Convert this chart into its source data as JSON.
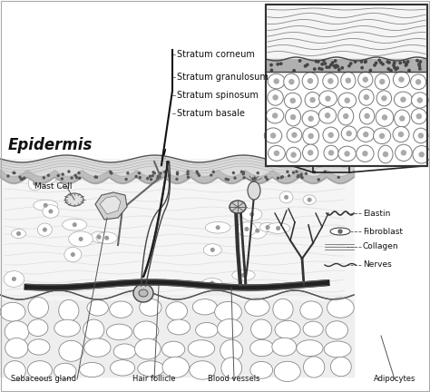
{
  "bg_color": "#ffffff",
  "epidermis_label": "Epidermis",
  "stratum_labels": [
    "Stratum corneum",
    "Stratum granulosum",
    "Stratum spinosum",
    "Stratum basale"
  ],
  "bottom_labels": [
    "Sebaceous gland",
    "Hair follicle",
    "Blood vessels",
    "Adipocytes"
  ],
  "right_labels": [
    "Elastin",
    "Fibroblast",
    "Collagen",
    "Nerves"
  ],
  "mast_cell_label": "Mast Cell",
  "line_color": "#333333",
  "text_color": "#111111",
  "figsize": [
    4.74,
    4.32
  ],
  "dpi": 100
}
